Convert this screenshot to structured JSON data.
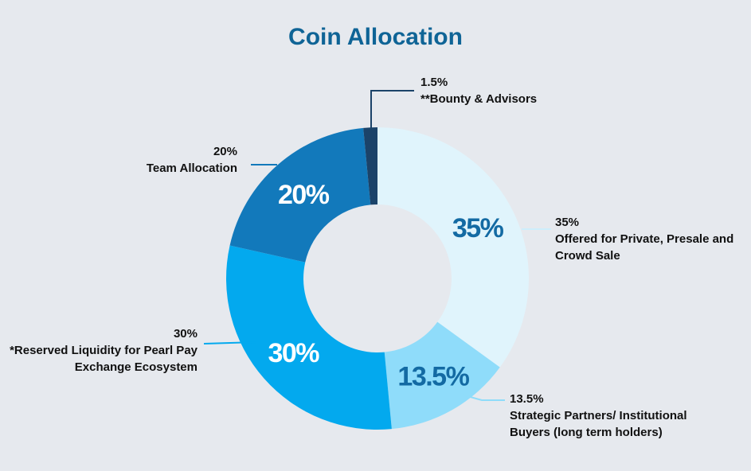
{
  "chart_data": {
    "type": "pie",
    "title": "Coin Allocation",
    "slices": [
      {
        "value": 35,
        "label": "35%",
        "pct_text": "35%",
        "desc": [
          "Offered for Private, Presale and",
          "Crowd Sale"
        ],
        "color": "#e0f4fc",
        "label_color": "#136aa3"
      },
      {
        "value": 13.5,
        "label": "13.5%",
        "pct_text": "13.5%",
        "desc": [
          "Strategic Partners/ Institutional",
          "Buyers (long term holders)"
        ],
        "color": "#8fdcfa",
        "label_color": "#136aa3"
      },
      {
        "value": 30,
        "label": "30%",
        "pct_text": "30%",
        "desc": [
          "*Reserved Liquidity for Pearl Pay",
          "Exchange Ecosystem"
        ],
        "color": "#03a9ee",
        "label_color": "#ffffff"
      },
      {
        "value": 20,
        "label": "20%",
        "pct_text": "20%",
        "desc": [
          "Team Allocation"
        ],
        "color": "#1279bb",
        "label_color": "#ffffff"
      },
      {
        "value": 1.5,
        "label": "",
        "pct_text": "1.5%",
        "desc": [
          "**Bounty & Advisors"
        ],
        "color": "#1b4369",
        "label_color": "#ffffff"
      }
    ]
  }
}
